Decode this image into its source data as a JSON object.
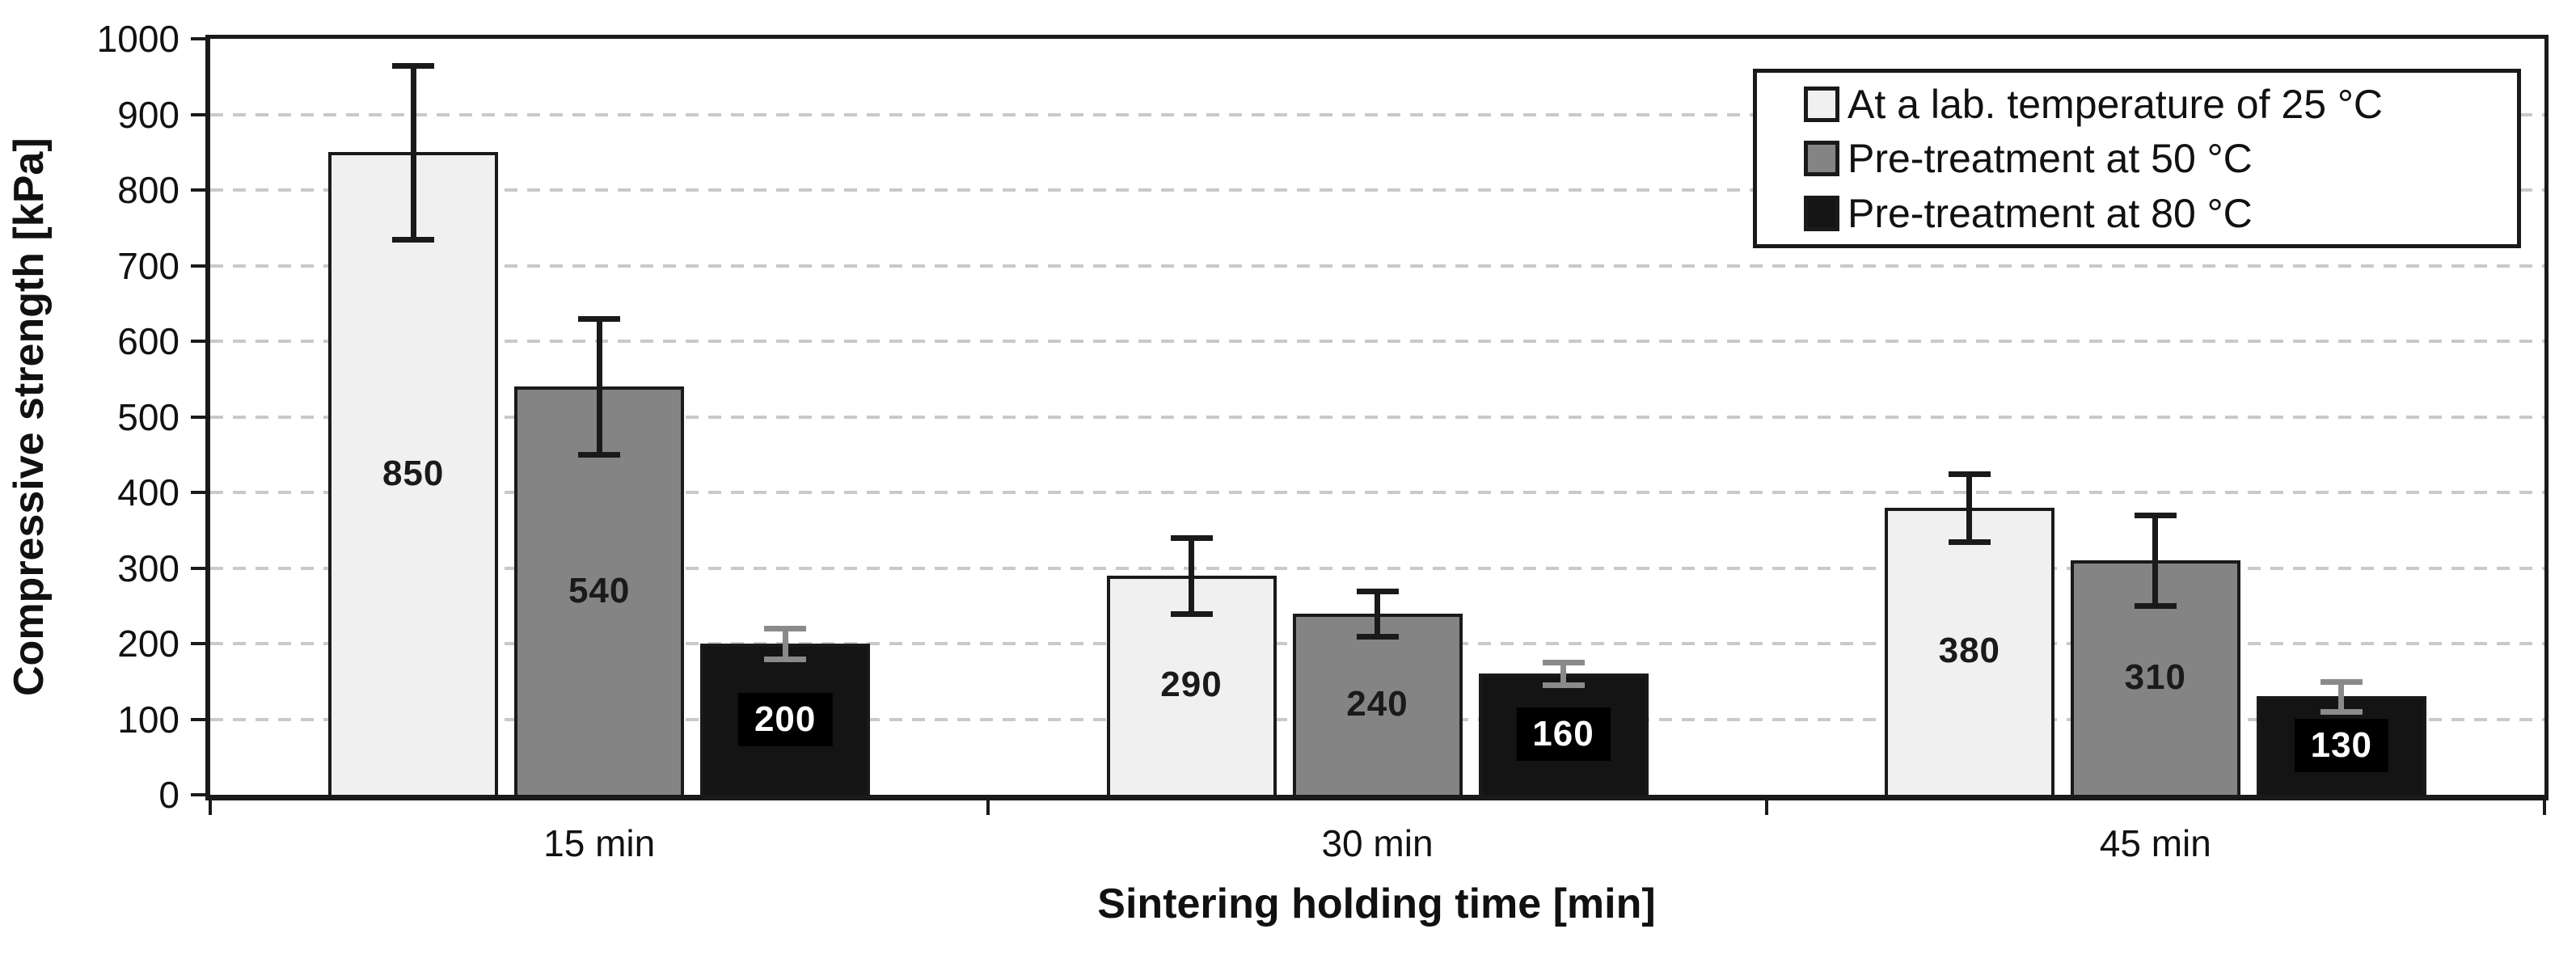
{
  "chart_data": {
    "type": "bar",
    "title": "",
    "xlabel": "Sintering holding time [min]",
    "ylabel": "Compressive strength [kPa]",
    "ylim": [
      0,
      1000
    ],
    "ytick_step": 100,
    "ytick_labels": [
      "0",
      "100",
      "200",
      "300",
      "400",
      "500",
      "600",
      "700",
      "800",
      "900",
      "1000"
    ],
    "categories": [
      "15 min",
      "30 min",
      "45 min"
    ],
    "series": [
      {
        "name": "At a lab. temperature of 25 °C",
        "values": [
          850,
          290,
          380
        ],
        "errors": [
          115,
          50,
          45
        ],
        "fill": "#f0f0f0",
        "error_color": "#1a1a1a",
        "label_color": "#1a1a1a",
        "label_bg": ""
      },
      {
        "name": "Pre-treatment at 50 °C",
        "values": [
          540,
          240,
          310
        ],
        "errors": [
          90,
          30,
          60
        ],
        "fill": "#848484",
        "error_color": "#1a1a1a",
        "label_color": "#1a1a1a",
        "label_bg": ""
      },
      {
        "name": "Pre-treatment at 80 °C",
        "values": [
          200,
          160,
          130
        ],
        "errors": [
          20,
          15,
          20
        ],
        "fill": "#141414",
        "error_color": "#8a8a8a",
        "label_color": "#ffffff",
        "label_bg": "#000000"
      }
    ],
    "value_labels_position": "center",
    "grid": "horizontal-dashed",
    "legend_position": "top-right",
    "colors": {
      "axis": "#1a1a1a",
      "grid": "#c9c9c9",
      "background": "#ffffff"
    }
  }
}
